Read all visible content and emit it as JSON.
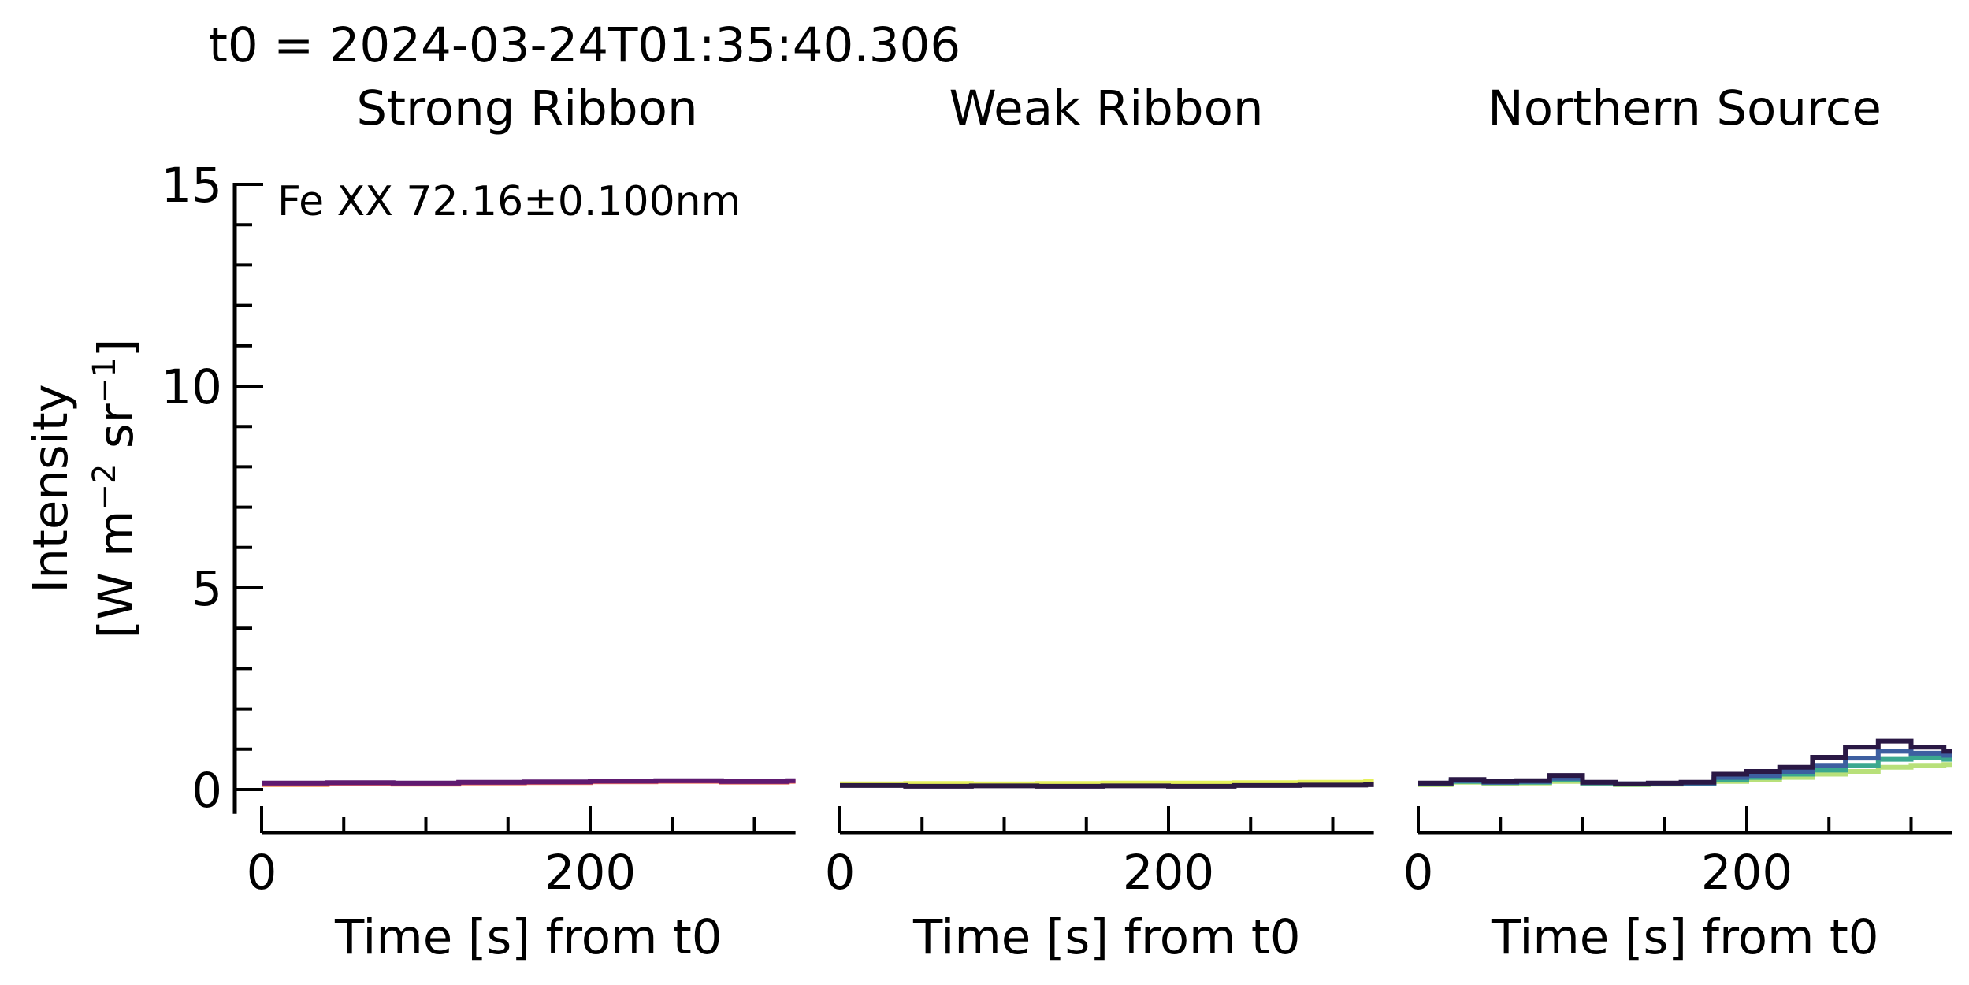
{
  "header": {
    "t0_label": "t0 = 2024-03-24T01:35:40.306"
  },
  "ylabel_line1": "Intensity",
  "ylabel_line2": "[W m",
  "ylabel_exp1": "−2",
  "ylabel_mid": " sr",
  "ylabel_exp2": "−1",
  "ylabel_end": "]",
  "annotation": "Fe XX 72.16±0.100nm",
  "chart_data": [
    {
      "type": "line",
      "title": "Strong Ribbon",
      "xlabel": "Time [s] from t0",
      "ylabel": "Intensity [W m−2 sr−1]",
      "xlim": [
        0,
        325
      ],
      "ylim": [
        -0.6,
        15
      ],
      "x_ticks": [
        0,
        200
      ],
      "y_ticks": [
        0,
        5,
        10,
        15
      ],
      "step": true,
      "series": [
        {
          "color": "#f4a06a",
          "x": [
            0,
            40,
            80,
            120,
            160,
            200,
            240,
            280,
            320
          ],
          "values": [
            0.12,
            0.14,
            0.13,
            0.16,
            0.17,
            0.19,
            0.2,
            0.18,
            0.2
          ]
        },
        {
          "color": "#d8456c",
          "x": [
            0,
            40,
            80,
            120,
            160,
            200,
            240,
            280,
            320
          ],
          "values": [
            0.14,
            0.16,
            0.15,
            0.17,
            0.18,
            0.2,
            0.21,
            0.19,
            0.21
          ]
        },
        {
          "color": "#5f1a70",
          "x": [
            0,
            40,
            80,
            120,
            160,
            200,
            240,
            280,
            320
          ],
          "values": [
            0.16,
            0.17,
            0.16,
            0.18,
            0.19,
            0.21,
            0.22,
            0.2,
            0.22
          ]
        }
      ]
    },
    {
      "type": "line",
      "title": "Weak Ribbon",
      "xlabel": "Time [s] from t0",
      "xlim": [
        0,
        325
      ],
      "ylim": [
        -0.6,
        15
      ],
      "x_ticks": [
        0,
        200
      ],
      "step": true,
      "series": [
        {
          "color": "#e5f05a",
          "x": [
            0,
            40,
            80,
            120,
            160,
            200,
            240,
            280,
            320
          ],
          "values": [
            0.14,
            0.15,
            0.14,
            0.15,
            0.16,
            0.16,
            0.17,
            0.18,
            0.2
          ]
        },
        {
          "color": "#2d1a40",
          "x": [
            0,
            40,
            80,
            120,
            160,
            200,
            240,
            280,
            320
          ],
          "values": [
            0.1,
            0.08,
            0.09,
            0.08,
            0.09,
            0.08,
            0.1,
            0.11,
            0.12
          ]
        }
      ]
    },
    {
      "type": "line",
      "title": "Northern Source",
      "xlabel": "Time [s] from t0",
      "xlim": [
        0,
        325
      ],
      "ylim": [
        -0.6,
        15
      ],
      "x_ticks": [
        0,
        200
      ],
      "step": true,
      "series": [
        {
          "color": "#b8e07a",
          "x": [
            0,
            20,
            40,
            60,
            80,
            100,
            120,
            140,
            160,
            180,
            200,
            220,
            240,
            260,
            280,
            300,
            320
          ],
          "values": [
            0.12,
            0.18,
            0.15,
            0.16,
            0.2,
            0.15,
            0.12,
            0.13,
            0.14,
            0.2,
            0.25,
            0.3,
            0.38,
            0.45,
            0.55,
            0.6,
            0.62
          ]
        },
        {
          "color": "#3ba88f",
          "x": [
            0,
            20,
            40,
            60,
            80,
            100,
            120,
            140,
            160,
            180,
            200,
            220,
            240,
            260,
            280,
            300,
            320
          ],
          "values": [
            0.14,
            0.2,
            0.17,
            0.18,
            0.24,
            0.16,
            0.13,
            0.14,
            0.15,
            0.25,
            0.3,
            0.38,
            0.48,
            0.6,
            0.75,
            0.8,
            0.75
          ]
        },
        {
          "color": "#3d5fa0",
          "x": [
            0,
            20,
            40,
            60,
            80,
            100,
            120,
            140,
            160,
            180,
            200,
            220,
            240,
            260,
            280,
            300,
            320
          ],
          "values": [
            0.15,
            0.22,
            0.18,
            0.2,
            0.28,
            0.17,
            0.14,
            0.15,
            0.16,
            0.3,
            0.35,
            0.45,
            0.6,
            0.78,
            0.95,
            0.9,
            0.85
          ]
        },
        {
          "color": "#2a1845",
          "x": [
            0,
            20,
            40,
            60,
            80,
            100,
            120,
            140,
            160,
            180,
            200,
            220,
            240,
            260,
            280,
            300,
            320
          ],
          "values": [
            0.16,
            0.25,
            0.2,
            0.22,
            0.35,
            0.18,
            0.14,
            0.16,
            0.18,
            0.38,
            0.45,
            0.55,
            0.8,
            1.05,
            1.2,
            1.05,
            0.95
          ]
        }
      ]
    }
  ]
}
